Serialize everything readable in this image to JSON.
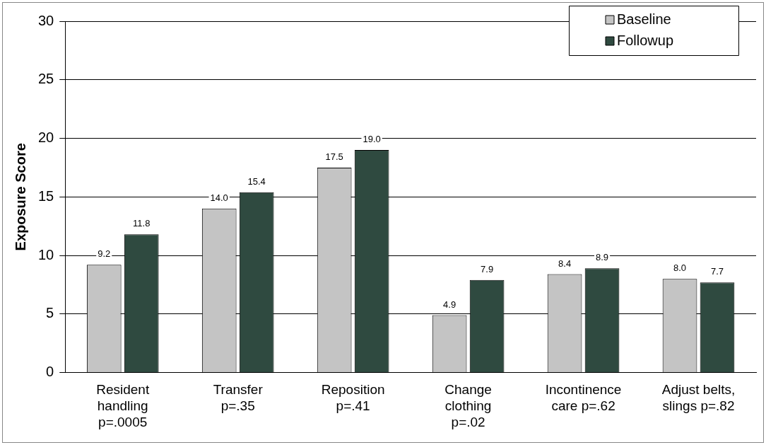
{
  "chart_data": {
    "type": "bar",
    "ylabel": "Exposure Score",
    "categories": [
      "Resident\nhandling\np=.0005",
      "Transfer\np=.35",
      "Reposition\np=.41",
      "Change\nclothing\np=.02",
      "Incontinence\ncare p=.62",
      "Adjust belts,\nslings p=.82"
    ],
    "series": [
      {
        "name": "Baseline",
        "color": "#c4c4c4",
        "values": [
          9.2,
          14.0,
          17.5,
          4.9,
          8.4,
          8.0
        ],
        "value_labels": [
          "9.2",
          "14.0",
          "17.5",
          "4.9",
          "8.4",
          "8.0"
        ]
      },
      {
        "name": "Followup",
        "color": "#2f4a40",
        "values": [
          11.8,
          15.4,
          19.0,
          7.9,
          8.9,
          7.7
        ],
        "value_labels": [
          "11.8",
          "15.4",
          "19.0",
          "7.9",
          "8.9",
          "7.7"
        ]
      }
    ],
    "ylim": [
      0,
      30
    ],
    "yticks": [
      0,
      5,
      10,
      15,
      20,
      25,
      30
    ],
    "grid": "y",
    "legend": "top right"
  }
}
